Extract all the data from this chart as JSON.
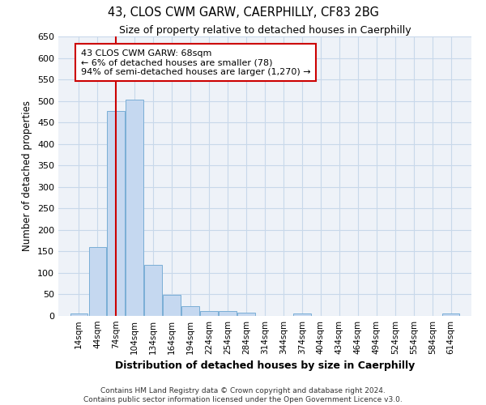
{
  "title": "43, CLOS CWM GARW, CAERPHILLY, CF83 2BG",
  "subtitle": "Size of property relative to detached houses in Caerphilly",
  "xlabel": "Distribution of detached houses by size in Caerphilly",
  "ylabel": "Number of detached properties",
  "bar_centers": [
    14,
    44,
    74,
    104,
    134,
    164,
    194,
    224,
    254,
    284,
    314,
    344,
    374,
    404,
    434,
    464,
    494,
    524,
    554,
    584,
    614
  ],
  "bar_heights": [
    5,
    160,
    477,
    503,
    119,
    49,
    23,
    12,
    12,
    8,
    0,
    0,
    5,
    0,
    0,
    0,
    0,
    0,
    0,
    0,
    5
  ],
  "bar_color": "#c5d8f0",
  "bar_edge_color": "#7aaed6",
  "grid_color": "#c8d8ea",
  "background_color": "#eef2f8",
  "red_line_x": 74,
  "annotation_text": "43 CLOS CWM GARW: 68sqm\n← 6% of detached houses are smaller (78)\n94% of semi-detached houses are larger (1,270) →",
  "annotation_box_color": "#ffffff",
  "annotation_border_color": "#cc0000",
  "ylim": [
    0,
    650
  ],
  "yticks": [
    0,
    50,
    100,
    150,
    200,
    250,
    300,
    350,
    400,
    450,
    500,
    550,
    600,
    650
  ],
  "xtick_labels": [
    "14sqm",
    "44sqm",
    "74sqm",
    "104sqm",
    "134sqm",
    "164sqm",
    "194sqm",
    "224sqm",
    "254sqm",
    "284sqm",
    "314sqm",
    "344sqm",
    "374sqm",
    "404sqm",
    "434sqm",
    "464sqm",
    "494sqm",
    "524sqm",
    "554sqm",
    "584sqm",
    "614sqm"
  ],
  "footer_line1": "Contains HM Land Registry data © Crown copyright and database right 2024.",
  "footer_line2": "Contains public sector information licensed under the Open Government Licence v3.0."
}
